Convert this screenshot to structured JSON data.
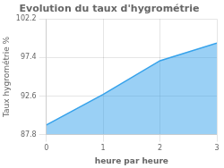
{
  "chart_data": {
    "type": "area",
    "title": "Evolution du taux d'hygrométrie",
    "xlabel": "heure par heure",
    "ylabel": "Taux hygrométrie %",
    "x": [
      0,
      1,
      2,
      3
    ],
    "values": [
      89.0,
      92.8,
      97.0,
      99.2
    ],
    "xlim": [
      0,
      3
    ],
    "ylim": [
      87.8,
      102.2
    ],
    "xticks": [
      0,
      1,
      2,
      3
    ],
    "yticks": [
      87.8,
      92.6,
      97.4,
      102.2
    ],
    "grid": true
  }
}
